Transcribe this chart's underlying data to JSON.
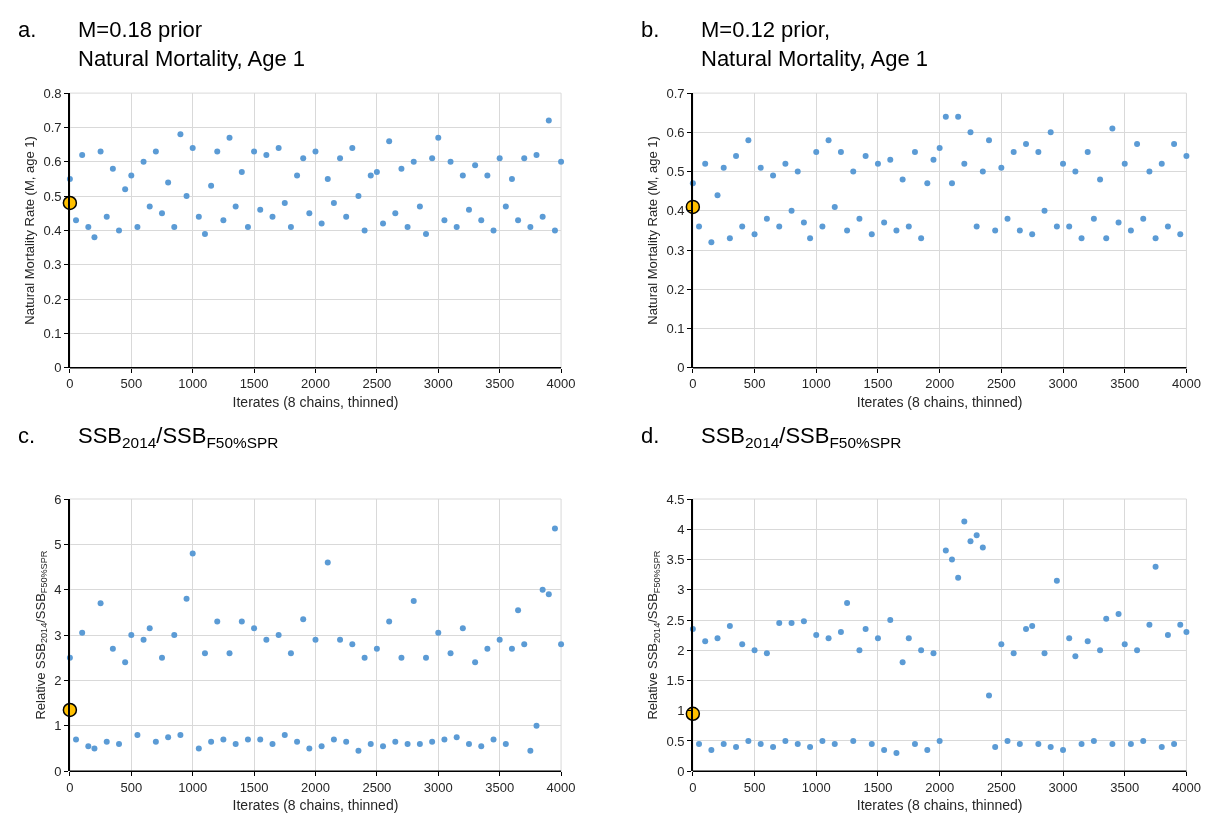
{
  "chart_data": [
    {
      "type": "scatter",
      "title": "M=0.18 prior\nNatural Mortality, Age 1",
      "annotations": [
        "a."
      ],
      "xlabel": "Iterates (8 chains, thinned)",
      "ylabel": "Natural Mortality Rate (M, age 1)",
      "xlim": [
        0,
        4000
      ],
      "xticks": [
        0,
        500,
        1000,
        1500,
        2000,
        2500,
        3000,
        3500,
        4000
      ],
      "ylim": [
        0,
        0.8
      ],
      "yticks": [
        0,
        0.1,
        0.2,
        0.3,
        0.4,
        0.5,
        0.6,
        0.7,
        0.8
      ],
      "grid": true,
      "marker": "circle",
      "series": [
        {
          "color": "#5b9bd5",
          "x": [
            0,
            50,
            100,
            150,
            200,
            250,
            300,
            350,
            400,
            450,
            500,
            550,
            600,
            650,
            700,
            750,
            800,
            850,
            900,
            950,
            1000,
            1050,
            1100,
            1150,
            1200,
            1250,
            1300,
            1350,
            1400,
            1450,
            1500,
            1550,
            1600,
            1650,
            1700,
            1750,
            1800,
            1850,
            1900,
            1950,
            2000,
            2050,
            2100,
            2150,
            2200,
            2250,
            2300,
            2350,
            2400,
            2450,
            2500,
            2550,
            2600,
            2650,
            2700,
            2750,
            2800,
            2850,
            2900,
            2950,
            3000,
            3050,
            3100,
            3150,
            3200,
            3250,
            3300,
            3350,
            3400,
            3450,
            3500,
            3550,
            3600,
            3650,
            3700,
            3750,
            3800,
            3850,
            3900,
            3950,
            4000
          ],
          "values": [
            0.55,
            0.43,
            0.62,
            0.41,
            0.38,
            0.63,
            0.44,
            0.58,
            0.4,
            0.52,
            0.56,
            0.41,
            0.6,
            0.47,
            0.63,
            0.45,
            0.54,
            0.41,
            0.68,
            0.5,
            0.64,
            0.44,
            0.39,
            0.53,
            0.63,
            0.43,
            0.67,
            0.47,
            0.57,
            0.41,
            0.63,
            0.46,
            0.62,
            0.44,
            0.64,
            0.48,
            0.41,
            0.56,
            0.61,
            0.45,
            0.63,
            0.42,
            0.55,
            0.48,
            0.61,
            0.44,
            0.64,
            0.5,
            0.4,
            0.56,
            0.57,
            0.42,
            0.66,
            0.45,
            0.58,
            0.41,
            0.6,
            0.47,
            0.39,
            0.61,
            0.67,
            0.43,
            0.6,
            0.41,
            0.56,
            0.46,
            0.59,
            0.43,
            0.56,
            0.4,
            0.61,
            0.47,
            0.55,
            0.43,
            0.61,
            0.41,
            0.62,
            0.44,
            0.72,
            0.4,
            0.6
          ]
        },
        {
          "color": "#ffc000",
          "x": [
            0
          ],
          "values": [
            0.48
          ]
        }
      ]
    },
    {
      "type": "scatter",
      "title": "M=0.12 prior,\nNatural Mortality, Age 1",
      "annotations": [
        "b."
      ],
      "xlabel": "Iterates (8 chains, thinned)",
      "ylabel": "Natural Mortality Rate (M, age 1)",
      "xlim": [
        0,
        4000
      ],
      "xticks": [
        0,
        500,
        1000,
        1500,
        2000,
        2500,
        3000,
        3500,
        4000
      ],
      "ylim": [
        0,
        0.7
      ],
      "yticks": [
        0,
        0.1,
        0.2,
        0.3,
        0.4,
        0.5,
        0.6,
        0.7
      ],
      "grid": true,
      "marker": "circle",
      "series": [
        {
          "color": "#5b9bd5",
          "x": [
            0,
            50,
            100,
            150,
            200,
            250,
            300,
            350,
            400,
            450,
            500,
            550,
            600,
            650,
            700,
            750,
            800,
            850,
            900,
            950,
            1000,
            1050,
            1100,
            1150,
            1200,
            1250,
            1300,
            1350,
            1400,
            1450,
            1500,
            1550,
            1600,
            1650,
            1700,
            1750,
            1800,
            1850,
            1900,
            1950,
            2000,
            2050,
            2100,
            2150,
            2200,
            2250,
            2300,
            2350,
            2400,
            2450,
            2500,
            2550,
            2600,
            2650,
            2700,
            2750,
            2800,
            2850,
            2900,
            2950,
            3000,
            3050,
            3100,
            3150,
            3200,
            3250,
            3300,
            3350,
            3400,
            3450,
            3500,
            3550,
            3600,
            3650,
            3700,
            3750,
            3800,
            3850,
            3900,
            3950,
            4000
          ],
          "values": [
            0.47,
            0.36,
            0.52,
            0.32,
            0.44,
            0.51,
            0.33,
            0.54,
            0.36,
            0.58,
            0.34,
            0.51,
            0.38,
            0.49,
            0.36,
            0.52,
            0.4,
            0.5,
            0.37,
            0.33,
            0.55,
            0.36,
            0.58,
            0.41,
            0.55,
            0.35,
            0.5,
            0.38,
            0.54,
            0.34,
            0.52,
            0.37,
            0.53,
            0.35,
            0.48,
            0.36,
            0.55,
            0.33,
            0.47,
            0.53,
            0.56,
            0.64,
            0.47,
            0.64,
            0.52,
            0.6,
            0.36,
            0.5,
            0.58,
            0.35,
            0.51,
            0.38,
            0.55,
            0.35,
            0.57,
            0.34,
            0.55,
            0.4,
            0.6,
            0.36,
            0.52,
            0.36,
            0.5,
            0.33,
            0.55,
            0.38,
            0.48,
            0.33,
            0.61,
            0.37,
            0.52,
            0.35,
            0.57,
            0.38,
            0.5,
            0.33,
            0.52,
            0.36,
            0.57,
            0.34,
            0.54
          ]
        },
        {
          "color": "#ffc000",
          "x": [
            0
          ],
          "values": [
            0.41
          ]
        }
      ]
    },
    {
      "type": "scatter",
      "title": "SSB$_{2014}$/SSB$_{F50%SPR}$",
      "annotations": [
        "c."
      ],
      "xlabel": "Iterates (8 chains, thinned)",
      "ylabel": "Relative SSB$_{2014}$/SSB$_{F50%SPR}$",
      "xlim": [
        0,
        4000
      ],
      "xticks": [
        0,
        500,
        1000,
        1500,
        2000,
        2500,
        3000,
        3500,
        4000
      ],
      "ylim": [
        0,
        6
      ],
      "yticks": [
        0,
        1,
        2,
        3,
        4,
        5,
        6
      ],
      "grid": true,
      "marker": "circle",
      "series": [
        {
          "color": "#5b9bd5",
          "x": [
            0,
            50,
            100,
            150,
            200,
            250,
            300,
            350,
            400,
            450,
            500,
            550,
            600,
            650,
            700,
            750,
            800,
            850,
            900,
            950,
            1000,
            1050,
            1100,
            1150,
            1200,
            1250,
            1300,
            1350,
            1400,
            1450,
            1500,
            1550,
            1600,
            1650,
            1700,
            1750,
            1800,
            1850,
            1900,
            1950,
            2000,
            2050,
            2100,
            2150,
            2200,
            2250,
            2300,
            2350,
            2400,
            2450,
            2500,
            2550,
            2600,
            2650,
            2700,
            2750,
            2800,
            2850,
            2900,
            2950,
            3000,
            3050,
            3100,
            3150,
            3200,
            3250,
            3300,
            3350,
            3400,
            3450,
            3500,
            3550,
            3600,
            3650,
            3700,
            3750,
            3800,
            3850,
            3900,
            3950,
            4000
          ],
          "values": [
            2.5,
            0.7,
            3.05,
            0.55,
            0.5,
            3.7,
            0.65,
            2.7,
            0.6,
            2.4,
            3.0,
            0.8,
            2.9,
            3.15,
            0.65,
            2.5,
            0.75,
            3.0,
            0.8,
            3.8,
            4.8,
            0.5,
            2.6,
            0.65,
            3.3,
            0.7,
            2.6,
            0.6,
            3.3,
            0.7,
            3.15,
            0.7,
            2.9,
            0.6,
            3.0,
            0.8,
            2.6,
            0.65,
            3.35,
            0.5,
            2.9,
            0.55,
            4.6,
            0.7,
            2.9,
            0.65,
            2.8,
            0.45,
            2.5,
            0.6,
            2.7,
            0.55,
            3.3,
            0.65,
            2.5,
            0.6,
            3.75,
            0.6,
            2.5,
            0.65,
            3.05,
            0.7,
            2.6,
            0.75,
            3.15,
            0.6,
            2.4,
            0.55,
            2.7,
            0.7,
            2.9,
            0.6,
            2.7,
            3.55,
            2.8,
            0.45,
            1.0,
            4.0,
            3.9,
            5.35,
            2.8
          ]
        },
        {
          "color": "#ffc000",
          "x": [
            0
          ],
          "values": [
            1.35
          ]
        }
      ]
    },
    {
      "type": "scatter",
      "title": "SSB$_{2014}$/SSB$_{F50%SPR}$",
      "annotations": [
        "d."
      ],
      "xlabel": "Iterates (8 chains, thinned)",
      "ylabel": "Relative SSB$_{2014}$/SSB$_{F50%SPR}$",
      "xlim": [
        0,
        4000
      ],
      "xticks": [
        0,
        500,
        1000,
        1500,
        2000,
        2500,
        3000,
        3500,
        4000
      ],
      "ylim": [
        0,
        4.5
      ],
      "yticks": [
        0,
        0.5,
        1,
        1.5,
        2,
        2.5,
        3,
        3.5,
        4,
        4.5
      ],
      "grid": true,
      "marker": "circle",
      "series": [
        {
          "color": "#5b9bd5",
          "x": [
            0,
            50,
            100,
            150,
            200,
            250,
            300,
            350,
            400,
            450,
            500,
            550,
            600,
            650,
            700,
            750,
            800,
            850,
            900,
            950,
            1000,
            1050,
            1100,
            1150,
            1200,
            1250,
            1300,
            1350,
            1400,
            1450,
            1500,
            1550,
            1600,
            1650,
            1700,
            1750,
            1800,
            1850,
            1900,
            1950,
            2000,
            2050,
            2100,
            2150,
            2200,
            2250,
            2300,
            2350,
            2400,
            2450,
            2500,
            2550,
            2600,
            2650,
            2700,
            2750,
            2800,
            2850,
            2900,
            2950,
            3000,
            3050,
            3100,
            3150,
            3200,
            3250,
            3300,
            3350,
            3400,
            3450,
            3500,
            3550,
            3600,
            3650,
            3700,
            3750,
            3800,
            3850,
            3900,
            3950,
            4000
          ],
          "values": [
            2.35,
            0.45,
            2.15,
            0.35,
            2.2,
            0.45,
            2.4,
            0.4,
            2.1,
            0.5,
            2.0,
            0.45,
            1.95,
            0.4,
            2.45,
            0.5,
            2.45,
            0.45,
            2.48,
            0.4,
            2.25,
            0.5,
            2.2,
            0.45,
            2.3,
            2.78,
            0.5,
            2.0,
            2.35,
            0.45,
            2.2,
            0.35,
            2.5,
            0.3,
            1.8,
            2.2,
            0.45,
            2.0,
            0.35,
            1.95,
            0.5,
            3.65,
            3.5,
            3.2,
            4.13,
            3.8,
            3.9,
            3.7,
            1.25,
            0.4,
            2.1,
            0.5,
            1.95,
            0.45,
            2.35,
            2.4,
            0.45,
            1.95,
            0.4,
            3.15,
            0.35,
            2.2,
            1.9,
            0.45,
            2.15,
            0.5,
            2.0,
            2.52,
            0.45,
            2.6,
            2.1,
            0.45,
            2.0,
            0.5,
            2.42,
            3.38,
            0.4,
            2.25,
            0.45,
            2.42,
            2.3
          ]
        },
        {
          "color": "#ffc000",
          "x": [
            0
          ],
          "values": [
            0.95
          ]
        }
      ]
    }
  ]
}
